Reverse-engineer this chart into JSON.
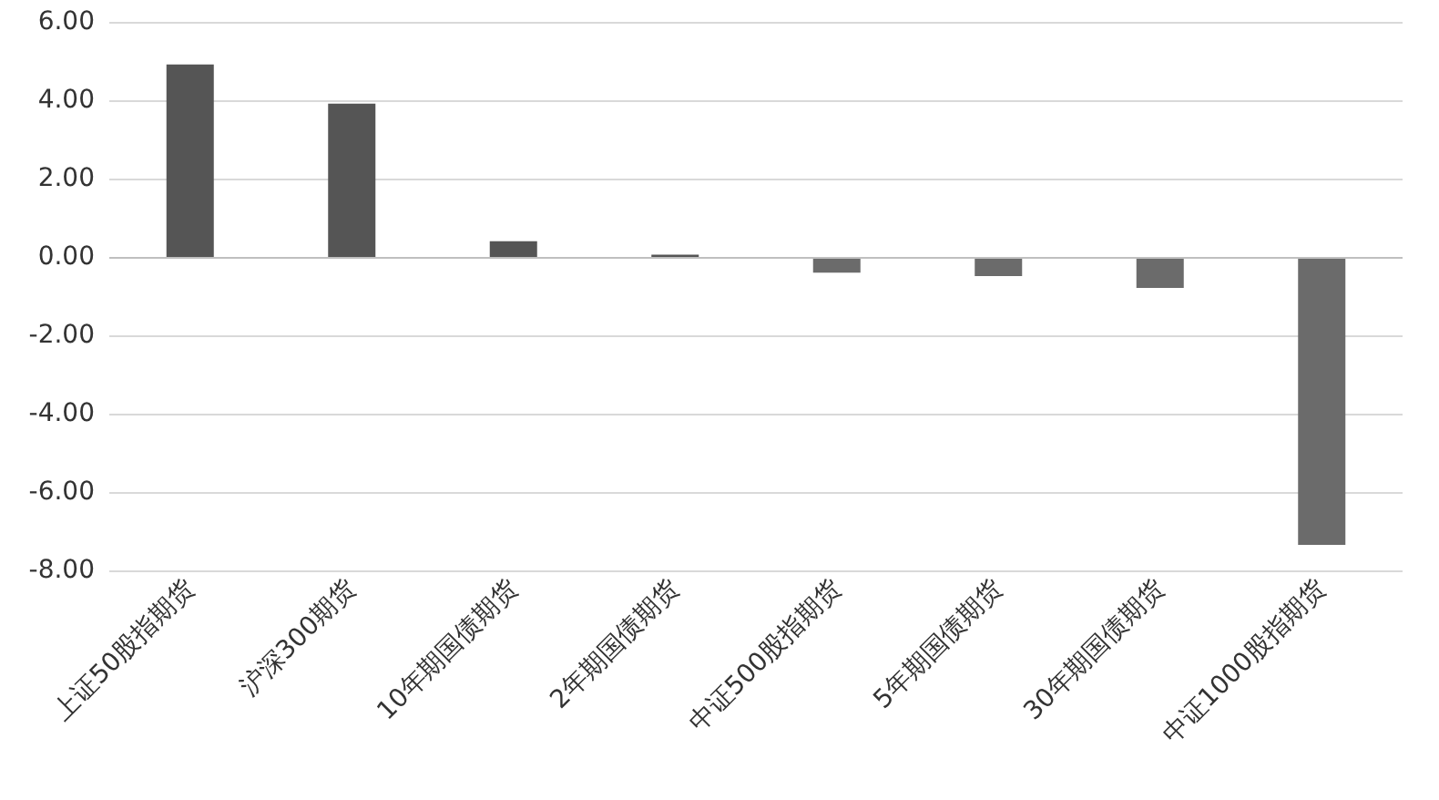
{
  "chart_data": {
    "type": "bar",
    "categories": [
      "上证50股指期货",
      "沪深300期货",
      "10年期国债期货",
      "2年期国债期货",
      "中证500股指期货",
      "5年期国债期货",
      "30年期国债期货",
      "中证1000股指期货"
    ],
    "values": [
      4.91,
      3.91,
      0.4,
      0.06,
      -0.4,
      -0.49,
      -0.79,
      -7.35
    ],
    "colors": [
      "#555555",
      "#555555",
      "#555555",
      "#555555",
      "#6b6b6b",
      "#6b6b6b",
      "#6b6b6b",
      "#6b6b6b"
    ],
    "ylim": [
      -8,
      6
    ],
    "yticks": [
      {
        "value": -8,
        "label": "-8.00"
      },
      {
        "value": -6,
        "label": "-6.00"
      },
      {
        "value": -4,
        "label": "-4.00"
      },
      {
        "value": -2,
        "label": "-2.00"
      },
      {
        "value": 0,
        "label": "0.00"
      },
      {
        "value": 2,
        "label": "2.00"
      },
      {
        "value": 4,
        "label": "4.00"
      },
      {
        "value": 6,
        "label": "6.00"
      }
    ],
    "grid": true
  }
}
